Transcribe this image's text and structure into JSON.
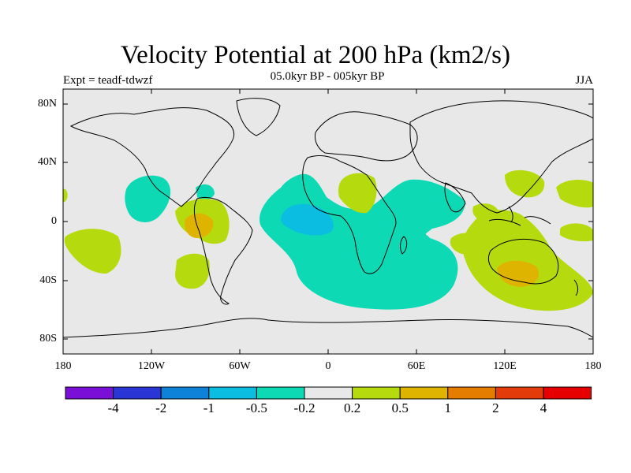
{
  "title": "Velocity Potential at 200 hPa (km2/s)",
  "subtitle": "05.0kyr BP - 005kyr BP",
  "left_label": "Expt = teadf-tdwzf",
  "right_label": "JJA",
  "axes": {
    "lat_ticks": [
      "80N",
      "40N",
      "0",
      "40S",
      "80S"
    ],
    "lon_ticks": [
      "180",
      "120W",
      "60W",
      "0",
      "60E",
      "120E",
      "180"
    ]
  },
  "colorbar": {
    "colors": [
      "#7a0fd8",
      "#2a35d6",
      "#0e82d8",
      "#0bbde0",
      "#0dd9b5",
      "#e8e8e8",
      "#b5db0f",
      "#dfb400",
      "#e57d00",
      "#e33c0a",
      "#e60000"
    ],
    "labels": [
      "-4",
      "-2",
      "-1",
      "-0.5",
      "-0.2",
      "0.2",
      "0.5",
      "1",
      "2",
      "4"
    ]
  },
  "fill_colors": {
    "ocean_land_bg": "#e8e8e8",
    "neg_weak": "#0dd9b5",
    "neg_mod": "#0bbde0",
    "pos_weak": "#b5db0f",
    "pos_mod": "#dfb400"
  }
}
